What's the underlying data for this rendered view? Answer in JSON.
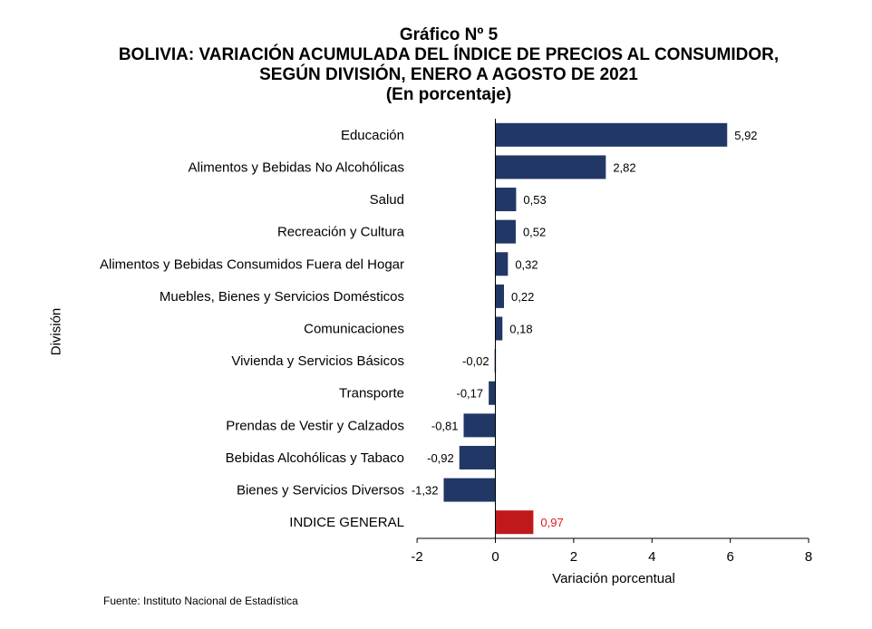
{
  "header": {
    "line1": "Gráfico Nº 5",
    "line2": "BOLIVIA: VARIACIÓN ACUMULADA DEL ÍNDICE DE PRECIOS AL CONSUMIDOR,",
    "line3": "SEGÚN DIVISIÓN, ENERO A AGOSTO DE 2021",
    "line4": "(En porcentaje)"
  },
  "footer": {
    "source": "Fuente: Instituto Nacional de Estadística"
  },
  "colors": {
    "bar": "#213765",
    "highlight_bar": "#c0191c",
    "highlight_label": "#e0191c",
    "axis": "#000000"
  },
  "chart_data": {
    "type": "bar",
    "orientation": "horizontal",
    "title": "Gráfico Nº 5 BOLIVIA: VARIACIÓN ACUMULADA DEL ÍNDICE DE PRECIOS AL CONSUMIDOR, SEGÚN DIVISIÓN, ENERO A AGOSTO DE 2021",
    "subtitle": "(En porcentaje)",
    "xlabel": "Variación porcentual",
    "ylabel": "División",
    "xlim": [
      -2,
      8
    ],
    "xticks": [
      -2,
      0,
      2,
      4,
      6,
      8
    ],
    "grid": false,
    "categories": [
      "Educación",
      "Alimentos y Bebidas No Alcohólicas",
      "Salud",
      "Recreación y Cultura",
      "Alimentos y Bebidas Consumidos Fuera del Hogar",
      "Muebles, Bienes y Servicios Domésticos",
      "Comunicaciones",
      "Vivienda y Servicios Básicos",
      "Transporte",
      "Prendas de Vestir y Calzados",
      "Bebidas Alcohólicas y Tabaco",
      "Bienes y Servicios Diversos",
      "INDICE GENERAL"
    ],
    "values": [
      5.92,
      2.82,
      0.53,
      0.52,
      0.32,
      0.22,
      0.18,
      -0.02,
      -0.17,
      -0.81,
      -0.92,
      -1.32,
      0.97
    ],
    "value_labels": [
      "5,92",
      "2,82",
      "0,53",
      "0,52",
      "0,32",
      "0,22",
      "0,18",
      "-0,02",
      "-0,17",
      "-0,81",
      "-0,92",
      "-1,32",
      "0,97"
    ],
    "highlighted_category": "INDICE GENERAL"
  }
}
